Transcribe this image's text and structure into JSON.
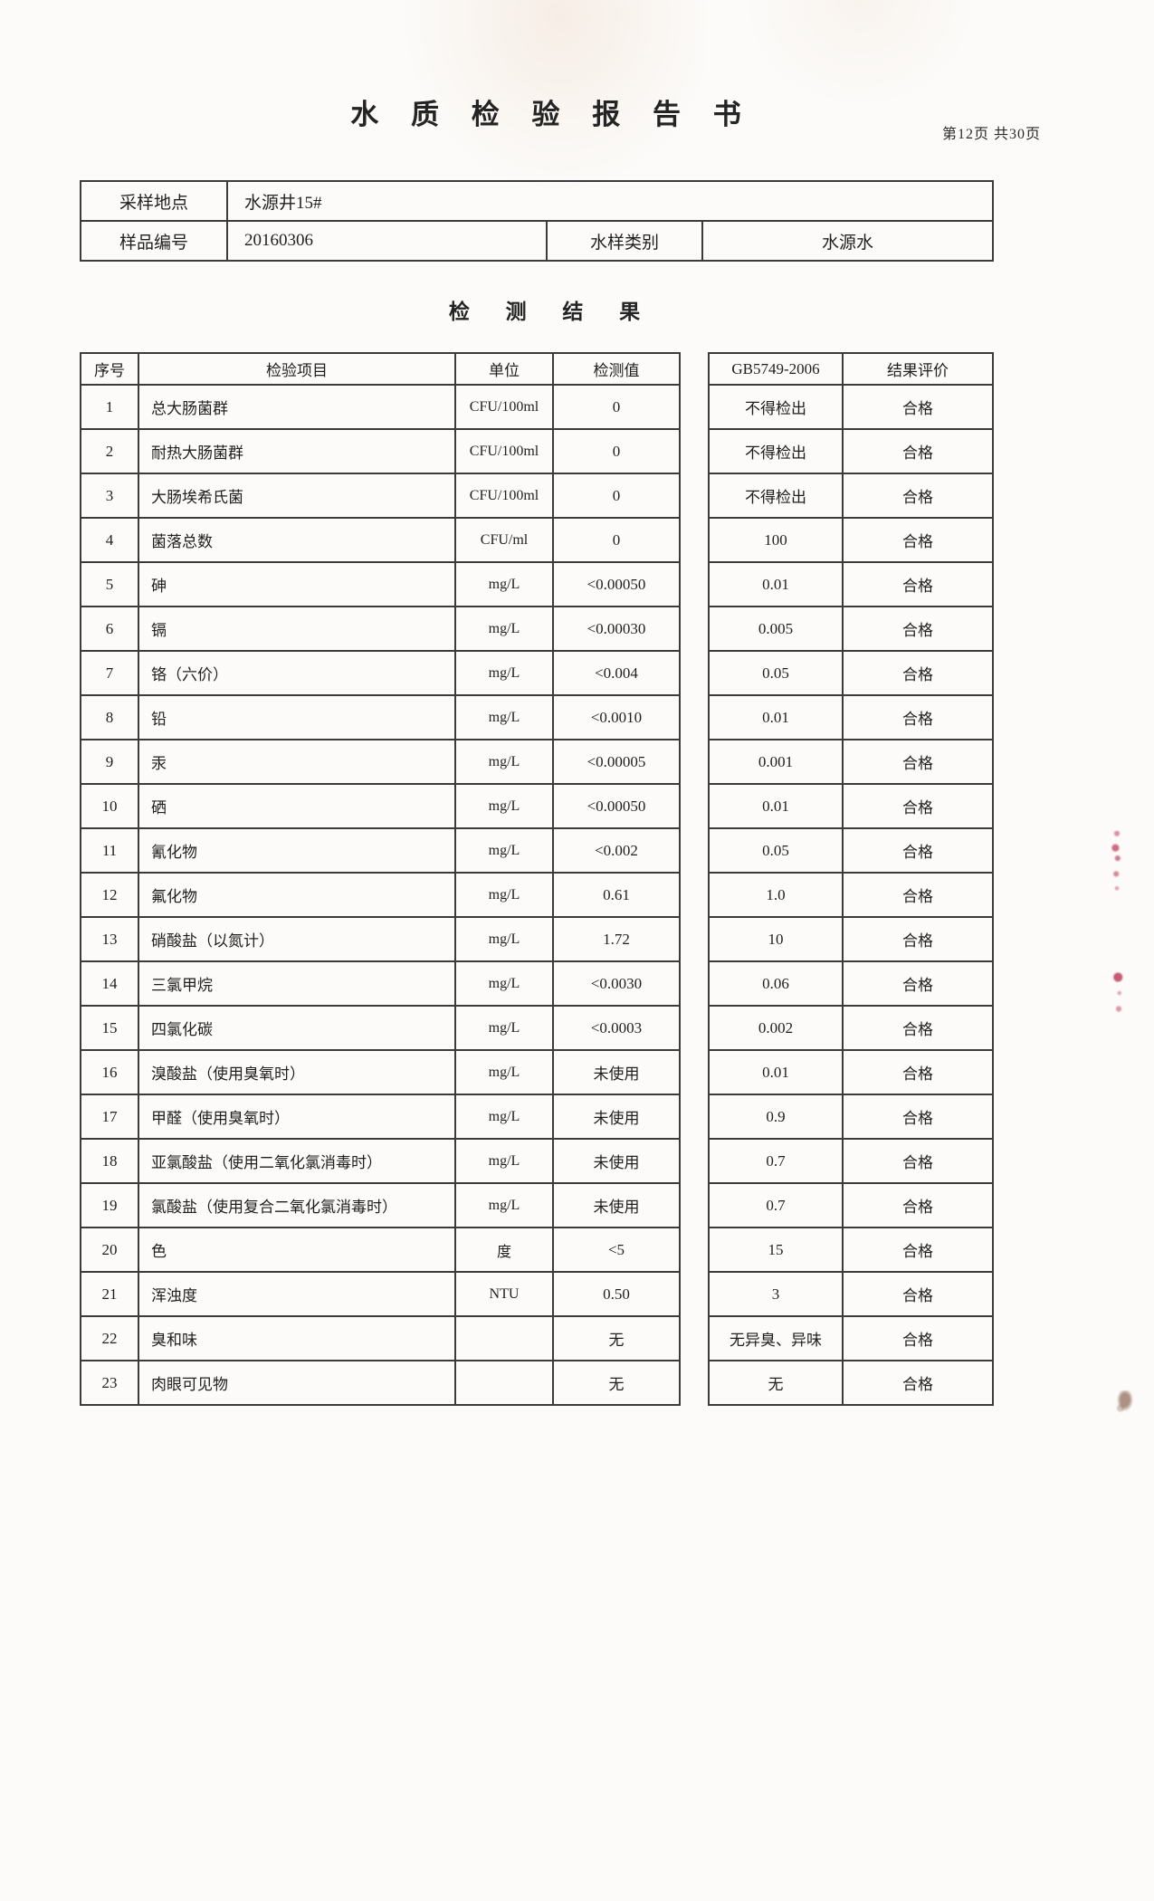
{
  "page": {
    "title": "水 质 检 验 报 告 书",
    "page_info": "第12页 共30页",
    "section_title": "检  测  结  果"
  },
  "sample_info": {
    "location_label": "采样地点",
    "location_value": "水源井15#",
    "sample_no_label": "样品编号",
    "sample_no_value": "20160306",
    "type_label": "水样类别",
    "type_value": "水源水"
  },
  "results_table": {
    "headers": [
      "序号",
      "检验项目",
      "单位",
      "检测值",
      "GB5749-2006",
      "结果评价"
    ],
    "rows": [
      [
        "1",
        "总大肠菌群",
        "CFU/100ml",
        "0",
        "不得检出",
        "合格"
      ],
      [
        "2",
        "耐热大肠菌群",
        "CFU/100ml",
        "0",
        "不得检出",
        "合格"
      ],
      [
        "3",
        "大肠埃希氏菌",
        "CFU/100ml",
        "0",
        "不得检出",
        "合格"
      ],
      [
        "4",
        "菌落总数",
        "CFU/ml",
        "0",
        "100",
        "合格"
      ],
      [
        "5",
        "砷",
        "mg/L",
        "<0.00050",
        "0.01",
        "合格"
      ],
      [
        "6",
        "镉",
        "mg/L",
        "<0.00030",
        "0.005",
        "合格"
      ],
      [
        "7",
        "铬（六价）",
        "mg/L",
        "<0.004",
        "0.05",
        "合格"
      ],
      [
        "8",
        "铅",
        "mg/L",
        "<0.0010",
        "0.01",
        "合格"
      ],
      [
        "9",
        "汞",
        "mg/L",
        "<0.00005",
        "0.001",
        "合格"
      ],
      [
        "10",
        "硒",
        "mg/L",
        "<0.00050",
        "0.01",
        "合格"
      ],
      [
        "11",
        "氰化物",
        "mg/L",
        "<0.002",
        "0.05",
        "合格"
      ],
      [
        "12",
        "氟化物",
        "mg/L",
        "0.61",
        "1.0",
        "合格"
      ],
      [
        "13",
        "硝酸盐（以氮计）",
        "mg/L",
        "1.72",
        "10",
        "合格"
      ],
      [
        "14",
        "三氯甲烷",
        "mg/L",
        "<0.0030",
        "0.06",
        "合格"
      ],
      [
        "15",
        "四氯化碳",
        "mg/L",
        "<0.0003",
        "0.002",
        "合格"
      ],
      [
        "16",
        "溴酸盐（使用臭氧时）",
        "mg/L",
        "未使用",
        "0.01",
        "合格"
      ],
      [
        "17",
        "甲醛（使用臭氧时）",
        "mg/L",
        "未使用",
        "0.9",
        "合格"
      ],
      [
        "18",
        "亚氯酸盐（使用二氧化氯消毒时）",
        "mg/L",
        "未使用",
        "0.7",
        "合格"
      ],
      [
        "19",
        "氯酸盐（使用复合二氧化氯消毒时）",
        "mg/L",
        "未使用",
        "0.7",
        "合格"
      ],
      [
        "20",
        "色",
        "度",
        "<5",
        "15",
        "合格"
      ],
      [
        "21",
        "浑浊度",
        "NTU",
        "0.50",
        "3",
        "合格"
      ],
      [
        "22",
        "臭和味",
        "",
        "无",
        "无异臭、异味",
        "合格"
      ],
      [
        "23",
        "肉眼可见物",
        "",
        "无",
        "无",
        "合格"
      ]
    ]
  }
}
